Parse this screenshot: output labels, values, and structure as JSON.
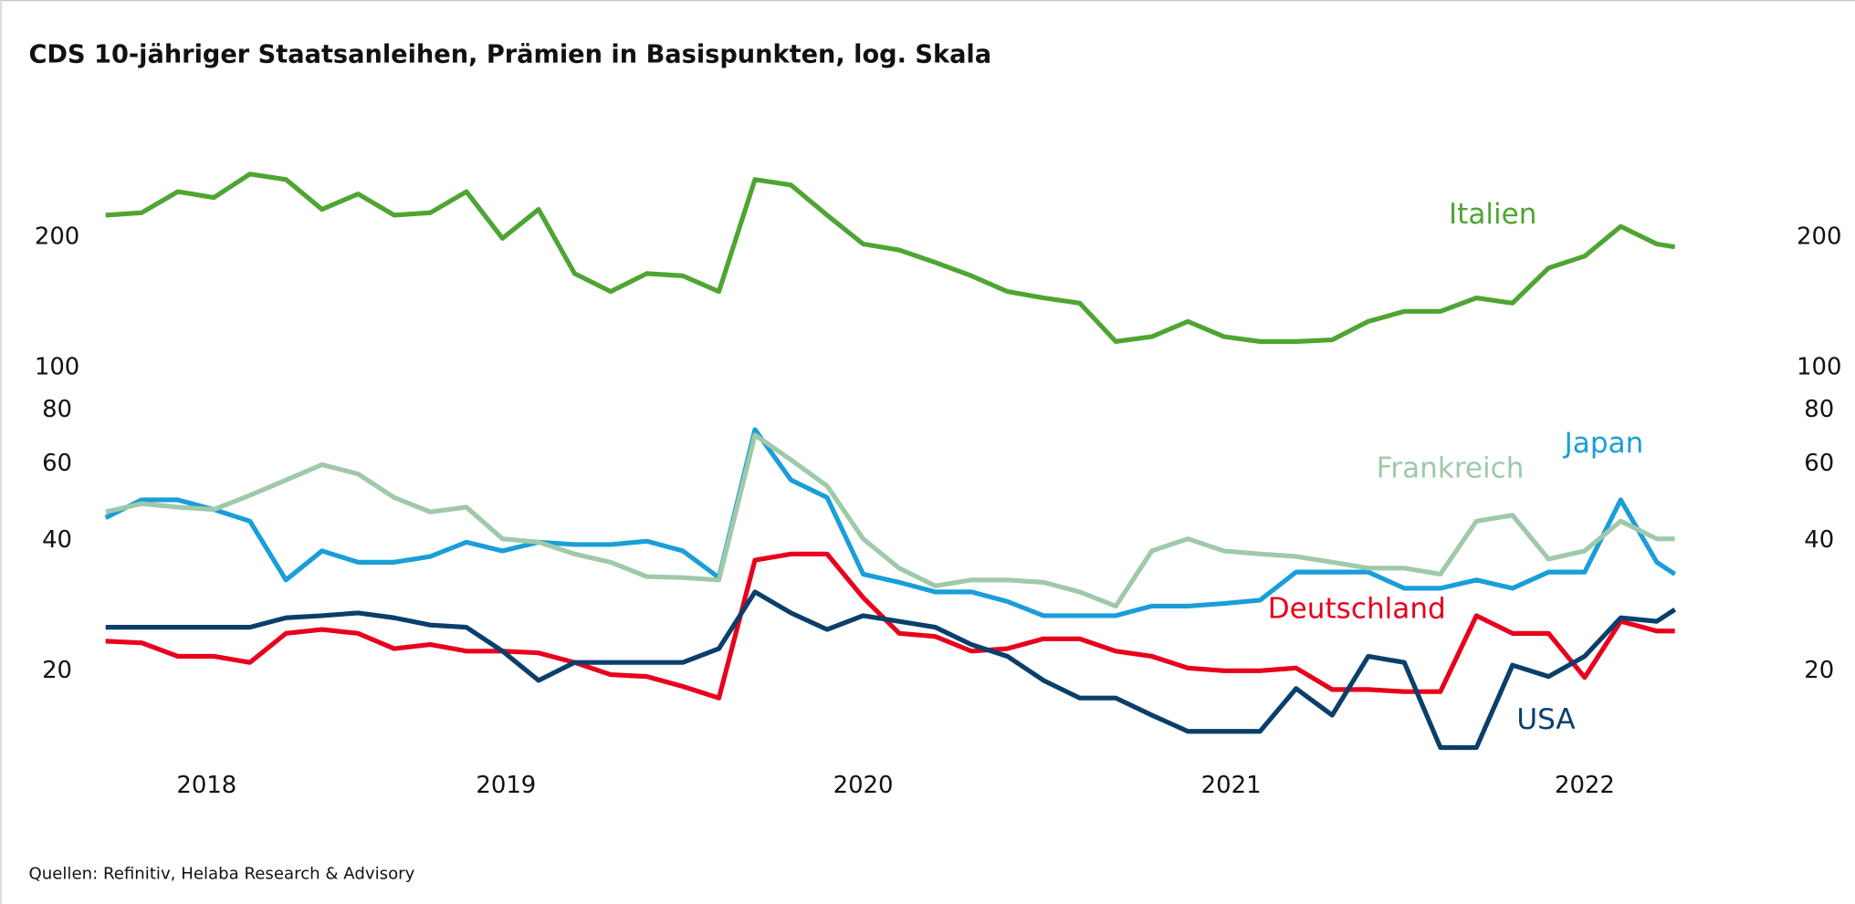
{
  "chart_data": {
    "type": "line",
    "title": "CDS 10-jähriger Staatsanleihen, Prämien in Basispunkten, log. Skala",
    "source": "Quellen: Refinitiv, Helaba Research & Advisory",
    "log_scale": true,
    "grid": false,
    "x": [
      2018.4,
      2018.5,
      2018.6,
      2018.7,
      2018.8,
      2018.9,
      2019.0,
      2019.1,
      2019.2,
      2019.3,
      2019.4,
      2019.5,
      2019.6,
      2019.7,
      2019.8,
      2019.9,
      2020.0,
      2020.1,
      2020.2,
      2020.3,
      2020.4,
      2020.5,
      2020.6,
      2020.7,
      2020.8,
      2020.9,
      2021.0,
      2021.1,
      2021.2,
      2021.3,
      2021.4,
      2021.5,
      2021.6,
      2021.7,
      2021.8,
      2021.9,
      2022.0,
      2022.1,
      2022.2,
      2022.3,
      2022.4,
      2022.5,
      2022.6,
      2022.7,
      2022.75
    ],
    "xlim": [
      2018.4,
      2022.75
    ],
    "xticks": [
      {
        "value": 2018.68,
        "label": "2018"
      },
      {
        "value": 2019.51,
        "label": "2019"
      },
      {
        "value": 2020.5,
        "label": "2020"
      },
      {
        "value": 2021.52,
        "label": "2021"
      },
      {
        "value": 2022.5,
        "label": "2022"
      }
    ],
    "ylim": [
      12,
      320
    ],
    "yticks": [
      20,
      40,
      60,
      80,
      100,
      200
    ],
    "series": [
      {
        "name": "Italien",
        "color": "#4ea532",
        "values": [
          225,
          228,
          255,
          247,
          280,
          272,
          232,
          252,
          225,
          228,
          255,
          199,
          232,
          165,
          150,
          165,
          163,
          150,
          272,
          264,
          225,
          193,
          187,
          175,
          163,
          150,
          145,
          141,
          115,
          118,
          128,
          118,
          115,
          115,
          116,
          128,
          135,
          135,
          145,
          141,
          170,
          181,
          212,
          193,
          190
        ]
      },
      {
        "name": "Japan",
        "color": "#1a9ed9",
        "values": [
          45.1,
          49.6,
          49.6,
          47.1,
          44.3,
          32.4,
          37.8,
          35.6,
          35.6,
          36.7,
          39.6,
          37.8,
          39.6,
          39.1,
          39.1,
          39.8,
          37.8,
          32.8,
          72,
          55.1,
          50.2,
          33.4,
          32.0,
          30.4,
          30.4,
          28.9,
          26.8,
          26.8,
          26.8,
          28.2,
          28.2,
          28.6,
          29.1,
          33.8,
          33.8,
          33.8,
          31.0,
          31.0,
          32.4,
          31.0,
          33.8,
          33.8,
          49.6,
          35.6,
          33.4
        ]
      },
      {
        "name": "Frankreich",
        "color": "#9fc9a9",
        "values": [
          46.5,
          48.6,
          47.7,
          47.1,
          50.8,
          55.1,
          59.8,
          56.9,
          50.2,
          46.5,
          47.7,
          40.3,
          39.6,
          37.2,
          35.6,
          33.0,
          32.8,
          32.4,
          70,
          61.3,
          53.4,
          40.3,
          34.5,
          31.4,
          32.4,
          32.4,
          32.0,
          30.4,
          28.2,
          37.8,
          40.3,
          37.8,
          37.2,
          36.7,
          35.6,
          34.5,
          34.5,
          33.4,
          44.3,
          45.7,
          36.2,
          37.8,
          44.3,
          40.3,
          40.3
        ]
      },
      {
        "name": "Deutschland",
        "color": "#e8001c",
        "values": [
          23.4,
          23.2,
          21.6,
          21.6,
          20.9,
          24.4,
          24.9,
          24.4,
          22.5,
          23.0,
          22.2,
          22.2,
          22.0,
          20.9,
          19.6,
          19.4,
          18.4,
          17.3,
          36,
          37.2,
          37.2,
          29.5,
          24.4,
          24.0,
          22.2,
          22.5,
          23.7,
          23.7,
          22.2,
          21.6,
          20.3,
          20,
          20,
          20.3,
          18.1,
          18.1,
          17.9,
          17.9,
          26.8,
          24.4,
          24.4,
          19.3,
          26.0,
          24.7,
          24.7
        ]
      },
      {
        "name": "USA",
        "color": "#0a3f6b",
        "values": [
          25.2,
          25.2,
          25.2,
          25.2,
          25.2,
          26.5,
          26.8,
          27.2,
          26.5,
          25.5,
          25.2,
          22.2,
          19.0,
          20.9,
          20.9,
          20.9,
          20.9,
          22.5,
          30.4,
          27.2,
          24.9,
          26.8,
          26.0,
          25.2,
          23.0,
          21.6,
          19.0,
          17.3,
          17.3,
          15.8,
          14.5,
          14.5,
          14.5,
          18.2,
          15.8,
          21.6,
          20.9,
          13.3,
          13.3,
          20.6,
          19.4,
          21.6,
          26.5,
          26.0,
          27.7
        ]
      }
    ]
  }
}
